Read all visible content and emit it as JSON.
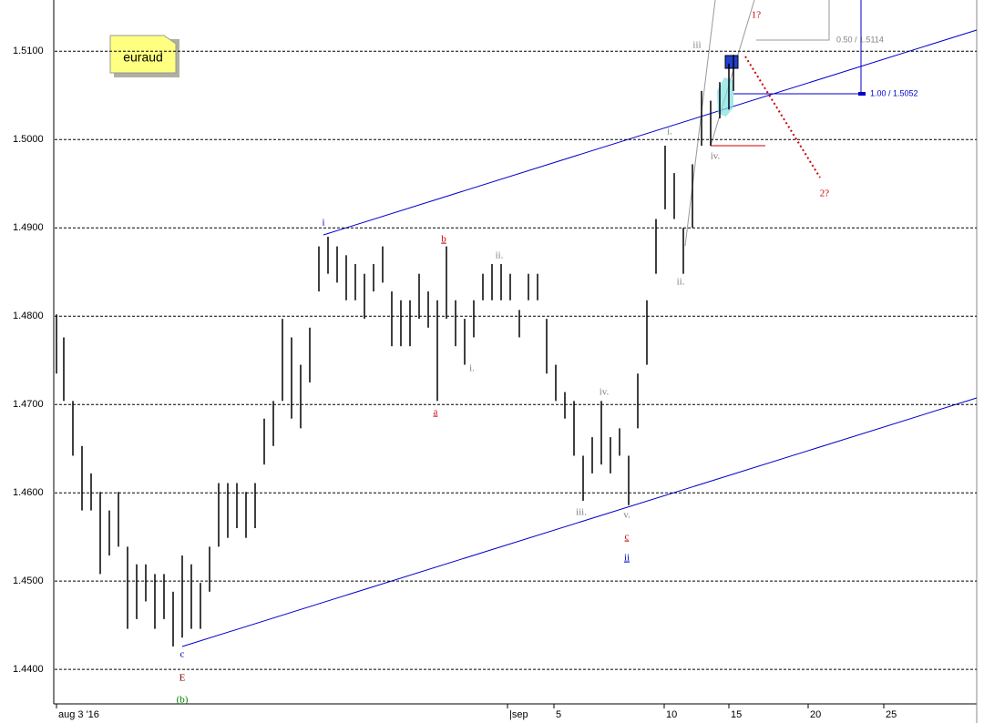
{
  "chart_data": {
    "type": "ohlc",
    "note": "euraud",
    "ylim": [
      1.4361,
      1.5158
    ],
    "yticks": [
      {
        "value": 1.44,
        "label": "1.4400"
      },
      {
        "value": 1.45,
        "label": "1.4500"
      },
      {
        "value": 1.46,
        "label": "1.4600"
      },
      {
        "value": 1.47,
        "label": "1.4700"
      },
      {
        "value": 1.48,
        "label": "1.4800"
      },
      {
        "value": 1.49,
        "label": "1.4900"
      },
      {
        "value": 1.5,
        "label": "1.5000"
      },
      {
        "value": 1.51,
        "label": "1.5100"
      }
    ],
    "xlim": [
      0,
      101.2
    ],
    "xticks": [
      {
        "value": 0.2,
        "label": "aug 3 '16"
      },
      {
        "value": 49.7,
        "label": "|sep"
      },
      {
        "value": 54.8,
        "label": "5"
      },
      {
        "value": 66.9,
        "label": "10"
      },
      {
        "value": 74,
        "label": "15"
      },
      {
        "value": 82.7,
        "label": "20"
      },
      {
        "value": 91,
        "label": "25"
      }
    ],
    "grid": true,
    "color": "#000000",
    "x": [
      0.2,
      1,
      2,
      3,
      4,
      5,
      6,
      7,
      8,
      9,
      10,
      11,
      12,
      13,
      14,
      15,
      16,
      17,
      18,
      19,
      20,
      21,
      22,
      23,
      24,
      25,
      26,
      27,
      28,
      29,
      30,
      31,
      32,
      33,
      34,
      35,
      36,
      37,
      38,
      39,
      40,
      41,
      42,
      43,
      44,
      45,
      46,
      47,
      48,
      49,
      50,
      51,
      52,
      53,
      54,
      55,
      56,
      57,
      58,
      59,
      60,
      61,
      62,
      63,
      64,
      65,
      66,
      67,
      68,
      69,
      70,
      71,
      72,
      73,
      74,
      74.5
    ],
    "high": [
      1.4802,
      1.4776,
      1.4704,
      1.4653,
      1.4622,
      1.4601,
      1.458,
      1.4601,
      1.4539,
      1.4519,
      1.4519,
      1.4508,
      1.4508,
      1.4488,
      1.4529,
      1.4519,
      1.4498,
      1.4539,
      1.4611,
      1.4611,
      1.4611,
      1.4601,
      1.4611,
      1.4684,
      1.4704,
      1.4797,
      1.4776,
      1.4745,
      1.4787,
      1.4879,
      1.489,
      1.4879,
      1.4869,
      1.4859,
      1.4848,
      1.4859,
      1.4879,
      1.4828,
      1.4818,
      1.4818,
      1.4848,
      1.4828,
      1.4818,
      1.4879,
      1.4818,
      1.4797,
      1.4818,
      1.4848,
      1.4859,
      1.4859,
      1.4848,
      1.4807,
      1.4848,
      1.4848,
      1.4797,
      1.4745,
      1.4714,
      1.4704,
      1.4642,
      1.4663,
      1.4704,
      1.4663,
      1.4673,
      1.4642,
      1.4735,
      1.4818,
      1.491,
      1.4993,
      1.4962,
      1.49,
      1.4972,
      1.5055,
      1.5044,
      1.5065,
      1.5086,
      1.5096
    ],
    "low": [
      1.4735,
      1.4704,
      1.4642,
      1.458,
      1.458,
      1.4508,
      1.4529,
      1.4539,
      1.4446,
      1.4457,
      1.4477,
      1.4446,
      1.4457,
      1.4426,
      1.4436,
      1.4446,
      1.4446,
      1.4488,
      1.4539,
      1.4549,
      1.456,
      1.4549,
      1.456,
      1.4632,
      1.4653,
      1.4704,
      1.4684,
      1.4673,
      1.4725,
      1.4828,
      1.4848,
      1.4838,
      1.4818,
      1.4818,
      1.4797,
      1.4828,
      1.4838,
      1.4766,
      1.4766,
      1.4766,
      1.4797,
      1.4787,
      1.4704,
      1.4797,
      1.4766,
      1.4745,
      1.4776,
      1.4818,
      1.4818,
      1.4818,
      1.4818,
      1.4776,
      1.4818,
      1.4818,
      1.4735,
      1.4704,
      1.4684,
      1.4642,
      1.4591,
      1.4622,
      1.4632,
      1.4622,
      1.4642,
      1.4586,
      1.4673,
      1.4745,
      1.4848,
      1.4921,
      1.491,
      1.4848,
      1.49,
      1.4993,
      1.4993,
      1.5024,
      1.5034,
      1.5055
    ],
    "annotations": [
      {
        "text": "i",
        "color": "#0000cc"
      },
      {
        "text": "b",
        "color": "#cc0000"
      },
      {
        "text": "ii.",
        "color": "#808080"
      },
      {
        "text": "a",
        "color": "#cc0000"
      },
      {
        "text": "i.",
        "color": "#808080"
      },
      {
        "text": "iii.",
        "color": "#808080"
      },
      {
        "text": "iv.",
        "color": "#808080"
      },
      {
        "text": "v.",
        "color": "#808080"
      },
      {
        "text": "c",
        "color": "#cc0000"
      },
      {
        "text": "ii",
        "color": "#0000cc"
      },
      {
        "text": "c",
        "color": "#0000cc"
      },
      {
        "text": "E",
        "color": "#800000"
      },
      {
        "text": "(b)",
        "color": "#008000"
      },
      {
        "text": "iii",
        "color": "#808080"
      },
      {
        "text": "i.",
        "color": "#808080"
      },
      {
        "text": "iv.",
        "color": "#808080"
      },
      {
        "text": "ii.",
        "color": "#808080"
      },
      {
        "text": "1?",
        "color": "#cc0000"
      },
      {
        "text": "2?",
        "color": "#cc0000"
      },
      {
        "text": "0.50 / 1.5114",
        "color": "#808080"
      },
      {
        "text": "1.00 / 1.5052",
        "color": "#0000cc"
      }
    ]
  }
}
